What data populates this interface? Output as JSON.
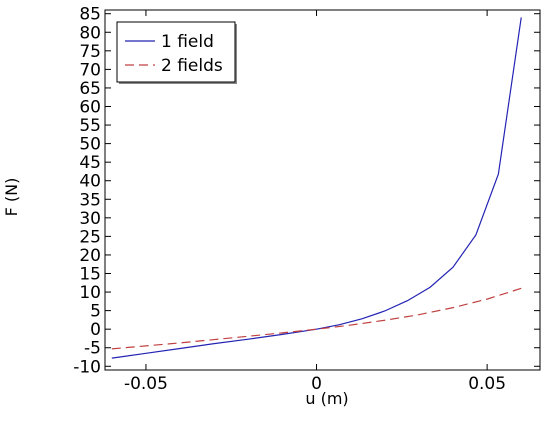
{
  "chart_data": {
    "type": "line",
    "title": "",
    "xlabel": "u (m)",
    "ylabel": "F (N)",
    "xlim": [
      -0.062,
      0.0655
    ],
    "ylim": [
      -11,
      86
    ],
    "xticks": [
      -0.05,
      0,
      0.05
    ],
    "xtick_labels": [
      "-0.05",
      "0",
      "0.05"
    ],
    "yticks": [
      -10,
      -5,
      0,
      5,
      10,
      15,
      20,
      25,
      30,
      35,
      40,
      45,
      50,
      55,
      60,
      65,
      70,
      75,
      80,
      85
    ],
    "ytick_labels": [
      "-10",
      "-5",
      "0",
      "5",
      "10",
      "15",
      "20",
      "25",
      "30",
      "35",
      "40",
      "45",
      "50",
      "55",
      "60",
      "65",
      "70",
      "75",
      "80",
      "85"
    ],
    "grid": false,
    "legend": {
      "position": "top-left"
    },
    "series": [
      {
        "name": "1 field",
        "color": "#2323b4",
        "style": "solid",
        "x": [
          -0.06,
          -0.05,
          -0.04,
          -0.03,
          -0.02,
          -0.01,
          0,
          0.0067,
          0.0133,
          0.02,
          0.0267,
          0.0333,
          0.04,
          0.0467,
          0.0533,
          0.06
        ],
        "y": [
          -7.8,
          -6.5,
          -5.2,
          -3.9,
          -2.7,
          -1.4,
          0,
          1.2,
          2.8,
          4.9,
          7.7,
          11.3,
          16.7,
          25.4,
          41.8,
          84.0
        ]
      },
      {
        "name": "2 fields",
        "color": "#c04040",
        "style": "dashed",
        "x": [
          -0.06,
          -0.05,
          -0.04,
          -0.03,
          -0.02,
          -0.01,
          0,
          0.01,
          0.02,
          0.03,
          0.04,
          0.05,
          0.06
        ],
        "y": [
          -5.3,
          -4.5,
          -3.7,
          -2.8,
          -1.9,
          -1.0,
          0,
          1.1,
          2.4,
          3.9,
          5.8,
          8.1,
          11.0
        ]
      }
    ]
  }
}
